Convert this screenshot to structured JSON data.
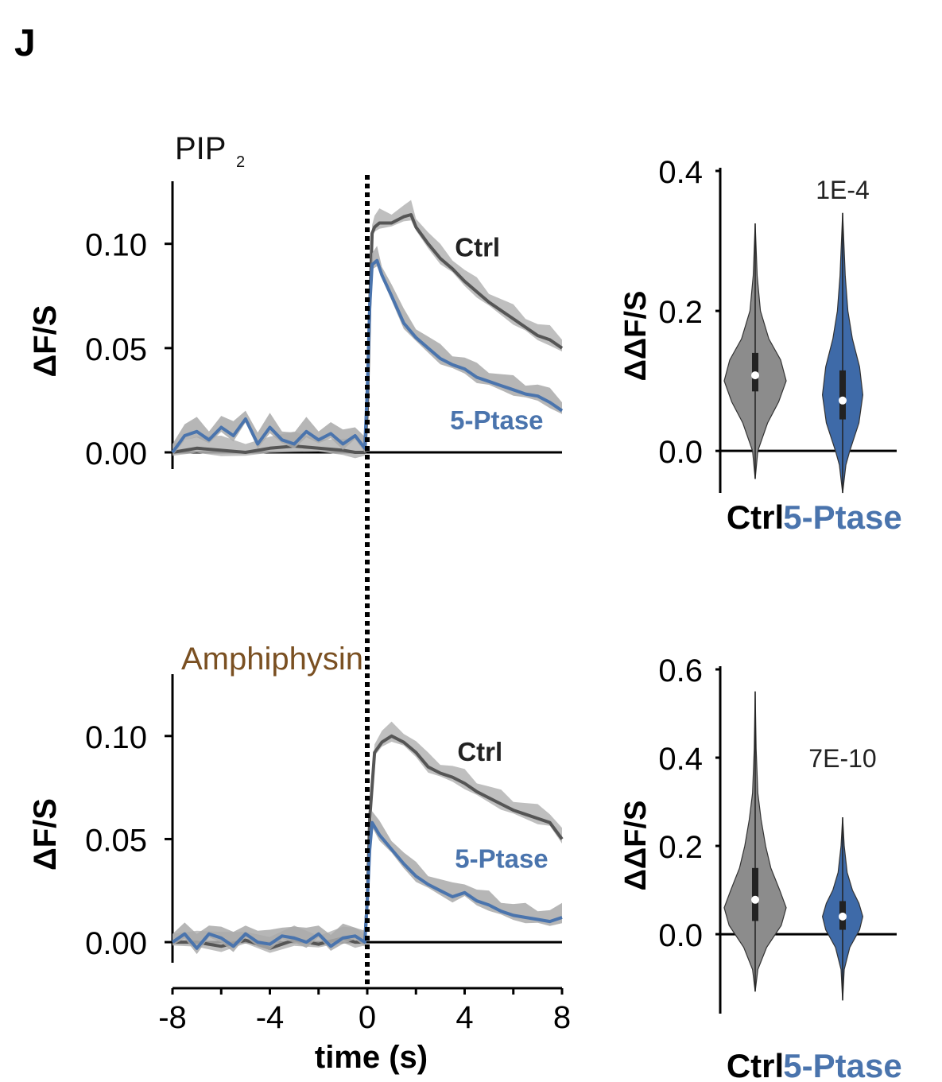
{
  "panel_label": "J",
  "colors": {
    "ctrl": "#555555",
    "ctrl_band": "#b4b4b4",
    "ptase": "#4a74ad",
    "ptase_band": "#a9a9a9",
    "amph": "#7a5022",
    "violin_ctrl": "#8c8c8c",
    "violin_ptase": "#3e6aa8"
  },
  "chart_data": [
    {
      "type": "line",
      "id": "pip2-trace",
      "title": "PIP",
      "title_sub": "2",
      "ylabel": "ΔF/S",
      "xlim": [
        -8,
        8
      ],
      "ylim": [
        -0.008,
        0.13
      ],
      "yticks": [
        0.0,
        0.05,
        0.1
      ],
      "ytick_labels": [
        "0.00",
        "0.05",
        "0.10"
      ],
      "event_time": 0,
      "series": [
        {
          "name": "Ctrl",
          "label": "Ctrl",
          "key": "ctrl",
          "label_at": [
            3.6,
            0.094
          ],
          "x": [
            -8,
            -7,
            -6,
            -5,
            -4,
            -3,
            -2,
            -1,
            -0.5,
            -0.1,
            0.0,
            0.1,
            0.2,
            0.3,
            0.5,
            1.0,
            1.5,
            1.8,
            2.0,
            2.5,
            3.0,
            3.5,
            4.0,
            4.5,
            5.0,
            5.5,
            6.0,
            6.5,
            7.0,
            7.5,
            8.0
          ],
          "y": [
            0.0,
            0.002,
            0.001,
            0.0,
            0.002,
            0.003,
            0.002,
            0.001,
            0.0,
            0.0,
            0.02,
            0.07,
            0.105,
            0.108,
            0.11,
            0.11,
            0.113,
            0.114,
            0.108,
            0.1,
            0.093,
            0.088,
            0.082,
            0.077,
            0.072,
            0.068,
            0.064,
            0.06,
            0.056,
            0.054,
            0.05
          ]
        },
        {
          "name": "5-Ptase",
          "label": "5-Ptase",
          "key": "ptase",
          "label_at": [
            3.4,
            0.011
          ],
          "x": [
            -8,
            -7.5,
            -7,
            -6.5,
            -6,
            -5.5,
            -5,
            -4.5,
            -4,
            -3.5,
            -3,
            -2.5,
            -2,
            -1.5,
            -1,
            -0.5,
            -0.1,
            0.0,
            0.1,
            0.2,
            0.4,
            0.6,
            1.0,
            1.5,
            2.0,
            2.5,
            3.0,
            3.5,
            4.0,
            4.5,
            5.0,
            5.5,
            6.0,
            6.5,
            7.0,
            7.5,
            8.0
          ],
          "y": [
            0.0,
            0.008,
            0.01,
            0.006,
            0.012,
            0.008,
            0.016,
            0.004,
            0.012,
            0.006,
            0.004,
            0.01,
            0.006,
            0.009,
            0.004,
            0.008,
            0.002,
            0.03,
            0.07,
            0.09,
            0.092,
            0.085,
            0.075,
            0.062,
            0.055,
            0.05,
            0.045,
            0.042,
            0.04,
            0.036,
            0.034,
            0.032,
            0.03,
            0.028,
            0.027,
            0.024,
            0.02
          ]
        }
      ]
    },
    {
      "type": "line",
      "id": "amph-trace",
      "title": "Amphiphysin",
      "ylabel": "ΔF/S",
      "xlabel": "time (s)",
      "xlim": [
        -8,
        8
      ],
      "ylim": [
        -0.01,
        0.13
      ],
      "xticks": [
        -8,
        -4,
        0,
        4,
        8
      ],
      "xtick_labels": [
        "-8",
        "-4",
        "0",
        "4",
        "8"
      ],
      "yticks": [
        0.0,
        0.05,
        0.1
      ],
      "ytick_labels": [
        "0.00",
        "0.05",
        "0.10"
      ],
      "event_time": 0,
      "series": [
        {
          "name": "Ctrl",
          "label": "Ctrl",
          "key": "ctrl",
          "label_at": [
            3.7,
            0.088
          ],
          "x": [
            -8,
            -7,
            -6,
            -5,
            -4,
            -3,
            -2,
            -1,
            -0.5,
            -0.1,
            0.0,
            0.1,
            0.3,
            0.6,
            1.0,
            1.5,
            2.0,
            2.5,
            3.0,
            3.5,
            4.0,
            4.5,
            5.0,
            5.5,
            6.0,
            6.5,
            7.0,
            7.5,
            8.0
          ],
          "y": [
            0.0,
            0.0,
            -0.002,
            0.001,
            -0.003,
            0.001,
            -0.001,
            0.002,
            0.0,
            0.0,
            0.02,
            0.06,
            0.092,
            0.097,
            0.1,
            0.097,
            0.092,
            0.085,
            0.082,
            0.08,
            0.077,
            0.073,
            0.07,
            0.067,
            0.064,
            0.062,
            0.06,
            0.058,
            0.05
          ]
        },
        {
          "name": "5-Ptase",
          "label": "5-Ptase",
          "key": "ptase",
          "label_at": [
            3.6,
            0.036
          ],
          "x": [
            -8,
            -7.5,
            -7,
            -6.5,
            -6,
            -5.5,
            -5,
            -4.5,
            -4,
            -3.5,
            -3,
            -2.5,
            -2,
            -1.5,
            -1,
            -0.5,
            -0.1,
            0.0,
            0.1,
            0.2,
            0.5,
            1.0,
            1.5,
            2.0,
            2.5,
            3.0,
            3.5,
            4.0,
            4.5,
            5.0,
            5.5,
            6.0,
            6.5,
            7.0,
            7.5,
            8.0
          ],
          "y": [
            0.0,
            0.004,
            -0.003,
            0.004,
            0.002,
            -0.002,
            0.004,
            0.0,
            -0.001,
            0.003,
            0.002,
            0.0,
            0.004,
            -0.002,
            0.002,
            0.003,
            0.0,
            0.02,
            0.045,
            0.058,
            0.052,
            0.045,
            0.038,
            0.032,
            0.028,
            0.025,
            0.022,
            0.024,
            0.02,
            0.018,
            0.015,
            0.013,
            0.012,
            0.011,
            0.01,
            0.012
          ]
        }
      ]
    },
    {
      "type": "violin",
      "id": "pip2-violin",
      "ylabel": "ΔΔF/S",
      "ylim": [
        -0.06,
        0.4
      ],
      "yticks": [
        0.0,
        0.2,
        0.4
      ],
      "ytick_labels": [
        "0.0",
        "0.2",
        "0.4"
      ],
      "pvalue": "1E-4",
      "groups": [
        {
          "name": "Ctrl",
          "key": "ctrl",
          "median": 0.108,
          "q1": 0.085,
          "q3": 0.14,
          "min": -0.04,
          "max": 0.325,
          "profile": [
            [
              -0.04,
              0.0
            ],
            [
              0.0,
              0.08
            ],
            [
              0.04,
              0.38
            ],
            [
              0.07,
              0.72
            ],
            [
              0.1,
              0.95
            ],
            [
              0.13,
              0.78
            ],
            [
              0.16,
              0.42
            ],
            [
              0.2,
              0.16
            ],
            [
              0.25,
              0.06
            ],
            [
              0.325,
              0.0
            ]
          ]
        },
        {
          "name": "5-Ptase",
          "key": "ptase",
          "median": 0.072,
          "q1": 0.045,
          "q3": 0.115,
          "min": -0.06,
          "max": 0.34,
          "profile": [
            [
              -0.06,
              0.0
            ],
            [
              -0.02,
              0.1
            ],
            [
              0.0,
              0.22
            ],
            [
              0.04,
              0.5
            ],
            [
              0.08,
              0.62
            ],
            [
              0.12,
              0.52
            ],
            [
              0.16,
              0.3
            ],
            [
              0.2,
              0.16
            ],
            [
              0.25,
              0.08
            ],
            [
              0.34,
              0.0
            ]
          ]
        }
      ]
    },
    {
      "type": "violin",
      "id": "amph-violin",
      "ylabel": "ΔΔF/S",
      "ylim": [
        -0.18,
        0.6
      ],
      "yticks": [
        0.0,
        0.2,
        0.4,
        0.6
      ],
      "ytick_labels": [
        "0.0",
        "0.2",
        "0.4",
        "0.6"
      ],
      "pvalue": "7E-10",
      "groups": [
        {
          "name": "Ctrl",
          "key": "ctrl",
          "median": 0.078,
          "q1": 0.03,
          "q3": 0.15,
          "min": -0.13,
          "max": 0.55,
          "profile": [
            [
              -0.13,
              0.0
            ],
            [
              -0.08,
              0.08
            ],
            [
              -0.03,
              0.35
            ],
            [
              0.02,
              0.8
            ],
            [
              0.06,
              0.95
            ],
            [
              0.1,
              0.75
            ],
            [
              0.15,
              0.48
            ],
            [
              0.2,
              0.32
            ],
            [
              0.26,
              0.18
            ],
            [
              0.32,
              0.08
            ],
            [
              0.42,
              0.03
            ],
            [
              0.55,
              0.0
            ]
          ]
        },
        {
          "name": "5-Ptase",
          "key": "ptase",
          "median": 0.04,
          "q1": 0.01,
          "q3": 0.075,
          "min": -0.15,
          "max": 0.265,
          "profile": [
            [
              -0.15,
              0.0
            ],
            [
              -0.08,
              0.05
            ],
            [
              -0.03,
              0.22
            ],
            [
              0.01,
              0.52
            ],
            [
              0.04,
              0.62
            ],
            [
              0.07,
              0.5
            ],
            [
              0.1,
              0.3
            ],
            [
              0.14,
              0.14
            ],
            [
              0.2,
              0.05
            ],
            [
              0.265,
              0.0
            ]
          ]
        }
      ]
    }
  ]
}
